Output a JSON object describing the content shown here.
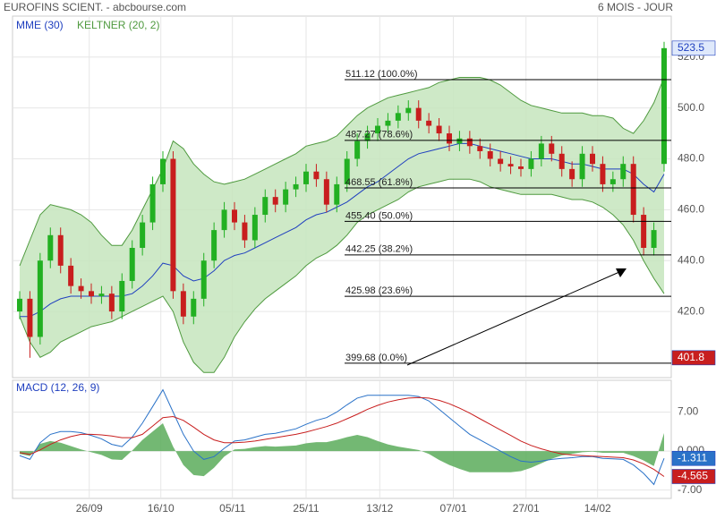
{
  "header": {
    "title": "EUROFINS SCIENT. - abcbourse.com",
    "period": "6 MOIS - JOUR"
  },
  "chart_data": [
    {
      "type": "candlestick",
      "xlim": [
        -0.7,
        63.7
      ],
      "ylim": [
        394,
        536.1
      ],
      "yticks": [
        {
          "value": 420,
          "label": "420.0"
        },
        {
          "value": 440,
          "label": "440.0"
        },
        {
          "value": 460,
          "label": "460.0"
        },
        {
          "value": 480,
          "label": "480.0"
        },
        {
          "value": 500,
          "label": "500.0"
        },
        {
          "value": 520,
          "label": "520.0"
        }
      ],
      "grid": true,
      "up_color": "#22b022",
      "down_color": "#c81e1e",
      "ohlc": {
        "open": [
          420,
          425,
          410,
          440,
          450,
          438,
          430,
          428,
          426,
          427,
          420,
          432,
          445,
          455,
          470,
          480,
          428,
          418,
          425,
          440,
          452,
          460,
          455,
          448,
          458,
          465,
          462,
          468,
          470,
          475,
          472,
          462,
          470,
          480,
          487,
          490,
          493,
          495,
          498,
          500,
          495,
          493,
          490,
          486,
          488,
          485,
          483,
          480,
          478,
          477,
          476,
          480,
          486,
          482,
          476,
          472,
          482,
          478,
          470,
          472,
          478,
          458,
          445,
          478
        ],
        "high": [
          428,
          428,
          443,
          453,
          453,
          441,
          433,
          431,
          430,
          430,
          435,
          448,
          458,
          473,
          483,
          483,
          431,
          428,
          443,
          455,
          463,
          463,
          458,
          461,
          468,
          468,
          471,
          473,
          478,
          478,
          475,
          473,
          483,
          490,
          493,
          496,
          498,
          501,
          503,
          503,
          498,
          496,
          493,
          491,
          491,
          488,
          486,
          483,
          481,
          480,
          483,
          489,
          489,
          485,
          479,
          485,
          485,
          481,
          475,
          481,
          481,
          461,
          455,
          526
        ],
        "low": [
          417,
          401.8,
          407,
          437,
          435,
          427,
          425,
          423,
          423,
          417,
          417,
          429,
          442,
          452,
          467,
          425,
          415,
          415,
          422,
          437,
          449,
          452,
          445,
          445,
          455,
          459,
          459,
          465,
          467,
          469,
          459,
          459,
          467,
          477,
          484,
          487,
          490,
          492,
          495,
          492,
          490,
          487,
          483,
          483,
          482,
          480,
          477,
          475,
          474,
          473,
          473,
          477,
          479,
          473,
          469,
          469,
          475,
          467,
          467,
          469,
          455,
          442,
          442,
          475
        ],
        "close": [
          425,
          410,
          440,
          450,
          438,
          430,
          428,
          426,
          427,
          420,
          432,
          445,
          455,
          470,
          480,
          428,
          418,
          425,
          440,
          452,
          460,
          455,
          448,
          458,
          465,
          462,
          468,
          470,
          475,
          472,
          462,
          470,
          480,
          487,
          490,
          493,
          495,
          498,
          500,
          495,
          493,
          490,
          486,
          488,
          485,
          483,
          480,
          478,
          477,
          476,
          480,
          486,
          482,
          476,
          472,
          482,
          478,
          470,
          472,
          478,
          458,
          445,
          452,
          523.5
        ]
      },
      "mme": {
        "name": "MME (30)",
        "color": "#1f3fbf",
        "values": [
          418,
          418,
          420,
          423,
          425,
          426,
          426,
          426,
          426,
          426,
          426,
          427,
          430,
          434,
          439,
          438,
          434,
          432,
          433,
          436,
          440,
          442,
          443,
          445,
          447,
          449,
          451,
          453,
          456,
          458,
          459,
          461,
          463,
          466,
          469,
          471,
          474,
          477,
          480,
          482,
          483,
          484,
          485,
          486,
          486,
          485,
          484,
          483,
          482,
          481,
          480,
          480,
          480,
          479,
          478,
          478,
          477,
          476,
          476,
          476,
          474,
          470,
          467,
          474
        ]
      },
      "keltner": {
        "name": "KELTNER (20, 2)",
        "color": "#4f9a3f",
        "fill": "#c6e5bd",
        "upper": [
          438,
          448,
          458,
          462,
          461,
          460,
          458,
          455,
          450,
          446,
          446,
          452,
          460,
          468,
          476,
          487,
          484,
          478,
          474,
          471,
          470,
          471,
          472,
          474,
          476,
          478,
          480,
          482,
          485,
          486,
          487,
          489,
          493,
          497,
          500,
          502,
          504,
          505,
          506,
          507,
          508,
          510,
          511,
          512,
          512,
          512,
          511,
          509,
          506,
          503,
          501,
          500,
          499,
          498,
          498,
          498,
          497,
          497,
          496,
          492,
          490,
          495,
          502,
          512
        ],
        "lower": [
          418,
          408,
          402,
          404,
          408,
          410,
          412,
          414,
          415,
          416,
          418,
          420,
          422,
          424,
          426,
          420,
          408,
          400,
          396,
          396,
          402,
          410,
          416,
          421,
          425,
          428,
          431,
          434,
          438,
          441,
          443,
          446,
          450,
          455,
          458,
          460,
          462,
          464,
          467,
          469,
          470,
          471,
          472,
          472,
          472,
          471,
          469,
          468,
          467,
          466,
          466,
          466,
          466,
          465,
          464,
          464,
          463,
          461,
          458,
          454,
          448,
          440,
          433,
          427
        ]
      },
      "fib_levels": [
        {
          "value": 511.12,
          "label": "511.12  (100.0%)"
        },
        {
          "value": 487.27,
          "label": "487.27  (78.6%)"
        },
        {
          "value": 468.55,
          "label": "468.55  (61.8%)"
        },
        {
          "value": 455.4,
          "label": "455.40  (50.0%)"
        },
        {
          "value": 442.25,
          "label": "442.25  (38.2%)"
        },
        {
          "value": 425.98,
          "label": "425.98  (23.6%)"
        },
        {
          "value": 399.68,
          "label": "399.68  (0.0%)"
        }
      ]
    },
    {
      "type": "macd",
      "title": "MACD (12, 26, 9)",
      "xlim": [
        -0.7,
        63.7
      ],
      "ylim": [
        -8.5,
        12.7
      ],
      "yticks": [
        {
          "value": 7,
          "label": "7.00"
        },
        {
          "value": 0,
          "label": "0.000"
        },
        {
          "value": -7,
          "label": "-7.00"
        }
      ],
      "xticks": [
        {
          "value": 6.8,
          "label": "26/09"
        },
        {
          "value": 13.8,
          "label": "16/10"
        },
        {
          "value": 20.8,
          "label": "05/11"
        },
        {
          "value": 28,
          "label": "25/11"
        },
        {
          "value": 35.2,
          "label": "13/12"
        },
        {
          "value": 42.4,
          "label": "07/01"
        },
        {
          "value": 49.5,
          "label": "27/01"
        },
        {
          "value": 56.5,
          "label": "14/02"
        }
      ],
      "macd": {
        "color": "#2a72c8",
        "values": [
          -0.8,
          -1.5,
          1.5,
          3,
          3.5,
          3.5,
          3.3,
          2.8,
          2.2,
          1.2,
          0.8,
          2.5,
          5,
          8,
          11,
          7,
          3,
          0,
          -1.5,
          -1,
          0.5,
          1.8,
          2,
          2.5,
          3,
          3.2,
          3.6,
          4,
          4.8,
          5.5,
          6,
          7,
          8.3,
          9.5,
          10,
          10,
          10,
          10,
          10,
          9.8,
          9,
          7.5,
          6,
          4.5,
          3,
          2,
          1,
          0,
          -1,
          -1.8,
          -2,
          -1.8,
          -1.5,
          -1.3,
          -1.2,
          -1,
          -1,
          -1.3,
          -1.4,
          -1.5,
          -2.5,
          -4,
          -6,
          -1.311
        ]
      },
      "signal": {
        "color": "#c81e1e",
        "values": [
          -0.3,
          -0.6,
          0.2,
          1.2,
          2,
          2.6,
          3,
          3,
          2.9,
          2.7,
          2.4,
          2.4,
          3,
          4.5,
          6,
          6.2,
          5.5,
          4.3,
          3,
          2,
          1.5,
          1.5,
          1.6,
          1.8,
          2.1,
          2.4,
          2.7,
          3,
          3.4,
          3.9,
          4.4,
          5,
          5.8,
          6.6,
          7.5,
          8.2,
          8.8,
          9.2,
          9.5,
          9.6,
          9.5,
          9.1,
          8.5,
          7.7,
          6.8,
          5.8,
          4.8,
          3.8,
          2.8,
          1.8,
          1,
          0.4,
          -0.1,
          -0.5,
          -0.7,
          -0.8,
          -0.9,
          -1,
          -1.1,
          -1.2,
          -1.6,
          -2.3,
          -3.3,
          -4.565
        ]
      },
      "histogram": {
        "color": "#5aab5a",
        "values": [
          -0.5,
          -0.9,
          1.3,
          1.8,
          1.5,
          0.9,
          0.3,
          -0.2,
          -0.7,
          -1.5,
          -1.6,
          0.1,
          2,
          3.5,
          5,
          0.8,
          -2.5,
          -4.3,
          -4.5,
          -3,
          -1,
          0.3,
          0.4,
          0.7,
          0.9,
          0.8,
          0.9,
          1,
          1.4,
          1.6,
          1.6,
          2,
          2.5,
          2.9,
          2.5,
          1.8,
          1.2,
          0.8,
          0.5,
          0.2,
          -0.5,
          -1.6,
          -2.5,
          -3.2,
          -3.8,
          -3.8,
          -3.8,
          -3.8,
          -3.8,
          -3.6,
          -3,
          -2.2,
          -1.4,
          -0.8,
          -0.5,
          -0.2,
          -0.1,
          -0.3,
          -0.3,
          -0.3,
          -0.9,
          -1.7,
          -2.7,
          3.254
        ]
      }
    }
  ]
}
